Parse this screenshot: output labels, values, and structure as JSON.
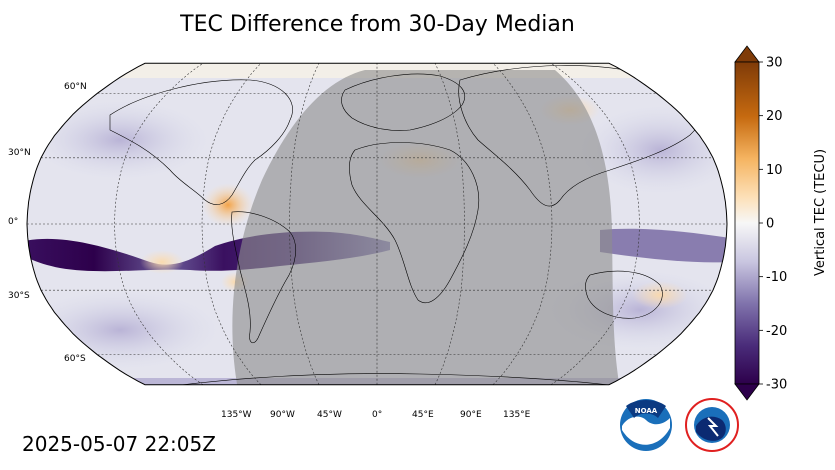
{
  "title": "TEC Difference from 30-Day Median",
  "timestamp": "2025-05-07 22:05Z",
  "map": {
    "projection": "robinson",
    "lat_labels": [
      "60°N",
      "30°N",
      "0°",
      "30°S",
      "60°S"
    ],
    "lon_labels": [
      "135°W",
      "90°W",
      "45°W",
      "0°",
      "45°E",
      "90°E",
      "135°E"
    ],
    "night_shading": true,
    "graticule_style": "dashed"
  },
  "colorbar": {
    "label": "Vertical TEC (TECU)",
    "ticks": [
      "30",
      "20",
      "10",
      "0",
      "-10",
      "-20",
      "-30"
    ],
    "range": [
      -30,
      30
    ],
    "colors": {
      "max": "#7f3b08",
      "high": "#e08214",
      "mid": "#f7f7f7",
      "low": "#8073ac",
      "min": "#2d004b"
    }
  },
  "colors": {
    "night_shade": "#9a9a9a",
    "ocean_base": "#e8e8f0",
    "coastline": "#000000"
  },
  "logos": {
    "noaa_icon": "noaa-logo",
    "nws_icon": "nws-logo",
    "noaa_text": "NOAA"
  }
}
